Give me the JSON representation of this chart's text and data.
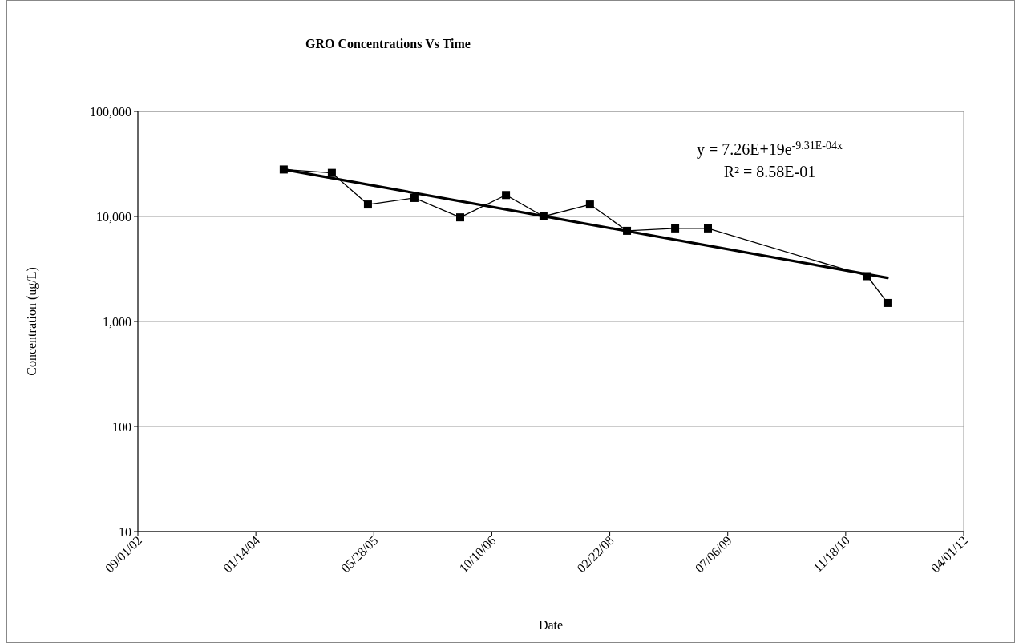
{
  "chart_data": {
    "type": "line",
    "title": "GRO Concentrations Vs Time",
    "xlabel": "Date",
    "ylabel": "Concentration (ug/L)",
    "x": [
      "2004-05-11",
      "2004-12-01",
      "2005-05-03",
      "2005-11-16",
      "2006-05-29",
      "2006-12-09",
      "2007-05-17",
      "2007-11-30",
      "2008-05-05",
      "2008-11-25",
      "2009-04-13",
      "2011-02-18",
      "2011-05-14"
    ],
    "series": [
      {
        "color": "#000000",
        "marker": "square",
        "values": [
          28000,
          26000,
          13000,
          15000,
          9800,
          16000,
          10000,
          13000,
          7300,
          7700,
          7700,
          2700,
          1500
        ]
      },
      {
        "type": "line",
        "color": "#000000",
        "marker": "none",
        "x": [
          "2004-05-11",
          "2011-05-14"
        ],
        "values": [
          28000,
          2600
        ]
      }
    ],
    "log": "y",
    "xlim": [
      "2002-09-01",
      "2012-04-01"
    ],
    "xticks": [
      {
        "value": "2002-09-01",
        "label": "09/01/02"
      },
      {
        "value": "2004-01-14",
        "label": "01/14/04"
      },
      {
        "value": "2005-05-28",
        "label": "05/28/05"
      },
      {
        "value": "2006-10-10",
        "label": "10/10/06"
      },
      {
        "value": "2008-02-22",
        "label": "02/22/08"
      },
      {
        "value": "2009-07-06",
        "label": "07/06/09"
      },
      {
        "value": "2010-11-18",
        "label": "11/18/10"
      },
      {
        "value": "2012-04-01",
        "label": "04/01/12"
      }
    ],
    "ylim": [
      10,
      100000
    ],
    "yticks": [
      10,
      100,
      {
        "value": 1000,
        "label": "1,000"
      },
      {
        "value": 10000,
        "label": "10,000"
      },
      {
        "value": 100000,
        "label": "100,000"
      }
    ],
    "grid": "y",
    "annotations": [
      "y = 7.26E+19e$^{-9.31E-04x}$",
      "R² = 8.58E-01"
    ]
  }
}
